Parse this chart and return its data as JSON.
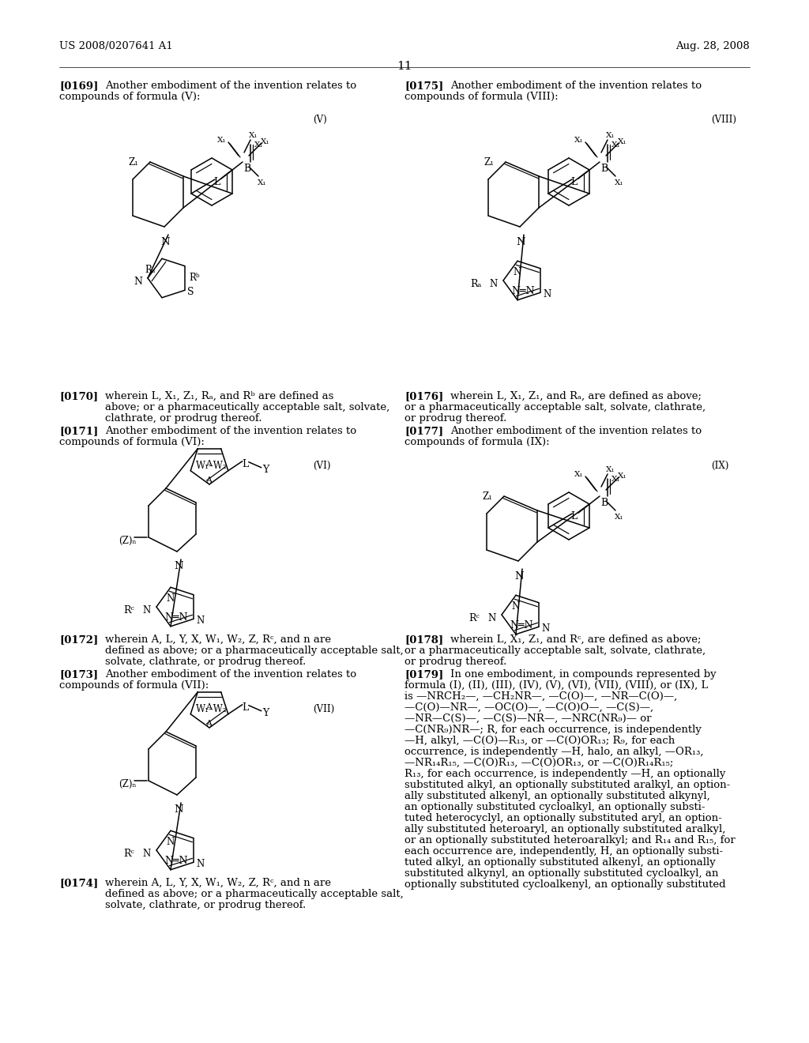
{
  "bg": "#ffffff",
  "header_left": "US 2008/0207641 A1",
  "header_right": "Aug. 28, 2008",
  "page_num": "11"
}
